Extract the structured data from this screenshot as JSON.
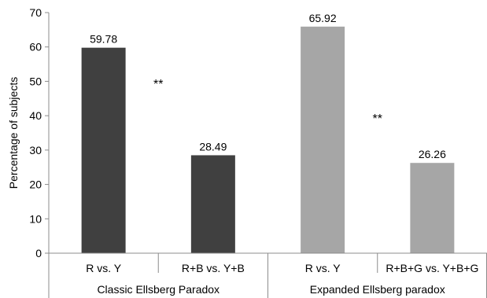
{
  "chart_data": {
    "type": "bar",
    "ylabel": "Percentage of subjects",
    "xlabel": "",
    "ylim": [
      0,
      70
    ],
    "ytick_step": 10,
    "grid": false,
    "legend": "none",
    "categories": [
      "R vs. Y",
      "R+B vs. Y+B",
      "R vs. Y",
      "R+B+G vs. Y+B+G"
    ],
    "values": [
      59.78,
      28.49,
      65.92,
      26.26
    ],
    "data_labels": [
      "59.78",
      "28.49",
      "65.92",
      "26.26"
    ],
    "bar_colors": [
      "#404040",
      "#404040",
      "#a6a6a6",
      "#a6a6a6"
    ],
    "groups": [
      {
        "label": "Classic Ellsberg Paradox",
        "category_indices": [
          0,
          1
        ]
      },
      {
        "label": "Expanded Ellsberg paradox",
        "category_indices": [
          2,
          3
        ]
      }
    ],
    "annotations": [
      {
        "text": "**",
        "between": [
          0,
          1
        ],
        "y": 48
      },
      {
        "text": "**",
        "between": [
          2,
          3
        ],
        "y": 38
      }
    ]
  }
}
